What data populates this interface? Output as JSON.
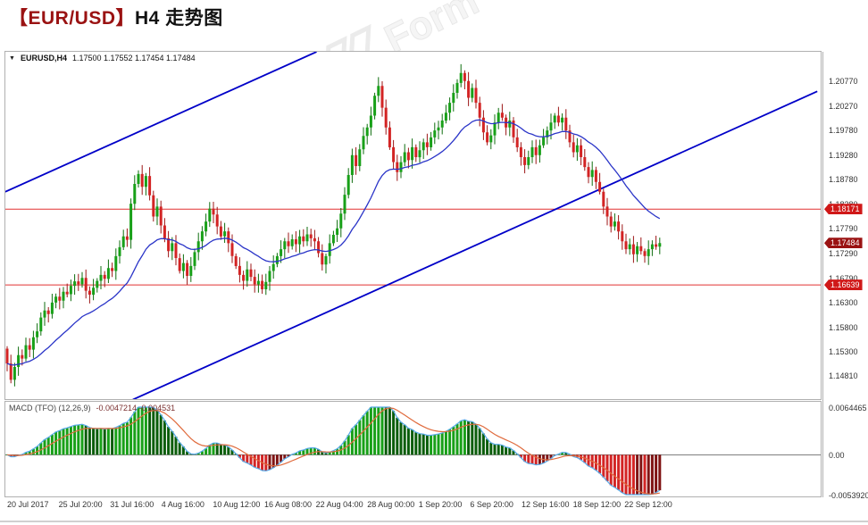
{
  "title": {
    "prefix": "【EUR/USD】",
    "suffix": "H4 走势图"
  },
  "watermark": {
    "text": "Form"
  },
  "icons": {
    "quote_collapse": "▼"
  },
  "colors": {
    "up": "#18a018",
    "down": "#d32424",
    "up_wick": "#0f6e0f",
    "down_wick": "#9c1717",
    "ma": "#2b35c8",
    "trendline": "#0000c8",
    "hline": "#e23030",
    "badge_bg": "#d01818",
    "current_badge_bg": "#9a1212",
    "macd_line": "#56a9e8",
    "macd_signal": "#e06b3d",
    "hist_up": "#18a018",
    "hist_up_dark": "#0a5d0a",
    "hist_down": "#d32424",
    "hist_down_dark": "#801414",
    "title_accent": "#9a1212"
  },
  "chart_data": {
    "type": "candlestick",
    "symbol": "EURUSD,H4",
    "quote_text": "1.17500 1.17552 1.17454 1.17484",
    "ylim": [
      1.1433,
      1.2135
    ],
    "first_open": 1.1535,
    "closes": [
      1.1505,
      1.1472,
      1.1498,
      1.1522,
      1.1515,
      1.1542,
      1.1533,
      1.1558,
      1.157,
      1.1598,
      1.1612,
      1.1605,
      1.1628,
      1.164,
      1.1632,
      1.165,
      1.1645,
      1.1662,
      1.1671,
      1.1665,
      1.1678,
      1.1652,
      1.1644,
      1.1658,
      1.1672,
      1.1684,
      1.1676,
      1.1698,
      1.1692,
      1.1722,
      1.174,
      1.1762,
      1.1755,
      1.1828,
      1.1868,
      1.1888,
      1.1862,
      1.1884,
      1.1845,
      1.1802,
      1.1822,
      1.1784,
      1.1758,
      1.1732,
      1.1748,
      1.1718,
      1.1692,
      1.1708,
      1.1682,
      1.1702,
      1.173,
      1.1752,
      1.1772,
      1.1792,
      1.1818,
      1.1806,
      1.1782,
      1.1762,
      1.1772,
      1.1748,
      1.1722,
      1.1702,
      1.1684,
      1.1672,
      1.1695,
      1.168,
      1.1665,
      1.1672,
      1.1655,
      1.167,
      1.1692,
      1.1706,
      1.1722,
      1.1736,
      1.1752,
      1.1742,
      1.1756,
      1.1746,
      1.1762,
      1.1752,
      1.1766,
      1.1758,
      1.1752,
      1.1728,
      1.1705,
      1.1722,
      1.1748,
      1.1765,
      1.1778,
      1.1808,
      1.1846,
      1.1886,
      1.1926,
      1.1904,
      1.1938,
      1.1965,
      1.1982,
      1.2006,
      1.2046,
      1.2066,
      1.2022,
      1.1982,
      1.1942,
      1.1912,
      1.1892,
      1.1912,
      1.1932,
      1.1916,
      1.1942,
      1.1922,
      1.1936,
      1.1952,
      1.1942,
      1.1962,
      1.1976,
      1.1982,
      1.1996,
      1.2012,
      1.2032,
      1.2052,
      1.2072,
      1.2092,
      1.2076,
      1.2042,
      1.2062,
      1.2032,
      1.2002,
      1.1972,
      1.1952,
      1.1966,
      1.1992,
      1.2012,
      1.2002,
      1.1982,
      1.1996,
      1.1962,
      1.1942,
      1.1922,
      1.1906,
      1.1922,
      1.1942,
      1.1926,
      1.1946,
      1.1962,
      1.1976,
      1.1992,
      1.2006,
      1.1992,
      1.2002,
      1.1976,
      1.1952,
      1.1932,
      1.1946,
      1.1922,
      1.1902,
      1.1882,
      1.1896,
      1.1872,
      1.1852,
      1.1822,
      1.1802,
      1.1782,
      1.1792,
      1.1772,
      1.1752,
      1.1736,
      1.1746,
      1.1726,
      1.1742,
      1.1732,
      1.1722,
      1.1736,
      1.1746,
      1.1741,
      1.17484
    ],
    "price_ticks": [
      "1.20770",
      "1.20270",
      "1.19780",
      "1.19280",
      "1.18780",
      "1.18280",
      "1.17790",
      "1.17290",
      "1.16790",
      "1.16300",
      "1.15800",
      "1.15300",
      "1.14810"
    ],
    "time_ticks": [
      "20 Jul 2017",
      "25 Jul 20:00",
      "31 Jul 16:00",
      "4 Aug 16:00",
      "10 Aug 12:00",
      "16 Aug 08:00",
      "22 Aug 04:00",
      "28 Aug 00:00",
      "1 Sep 20:00",
      "6 Sep 20:00",
      "12 Sep 16:00",
      "18 Sep 12:00",
      "22 Sep 12:00"
    ],
    "hlines": [
      {
        "value": 1.18171,
        "label": "1.18171"
      },
      {
        "value": 1.16639,
        "label": "1.16639"
      }
    ],
    "current_price": {
      "value": 1.17484,
      "label": "1.17484"
    },
    "trendlines": [
      {
        "b1": -0.5,
        "p1": 1.1852,
        "b2": 82.5,
        "p2": 1.2135
      },
      {
        "b1": 33.5,
        "p1": 1.1432,
        "b2": 216.0,
        "p2": 1.2055
      }
    ],
    "moving_average": {
      "type": "EMA",
      "period": 24
    },
    "macd": {
      "label": "MACD (TFO) (12,26,9)",
      "value_text": "-0.0047214 -0.004531",
      "fast": 12,
      "slow": 26,
      "signal": 9,
      "axis_ticks": [
        {
          "label": "0.0064465",
          "value": 0.0064465
        },
        {
          "label": "0.00",
          "value": 0
        },
        {
          "label": "-0.0053920",
          "value": -0.005392
        }
      ]
    }
  }
}
